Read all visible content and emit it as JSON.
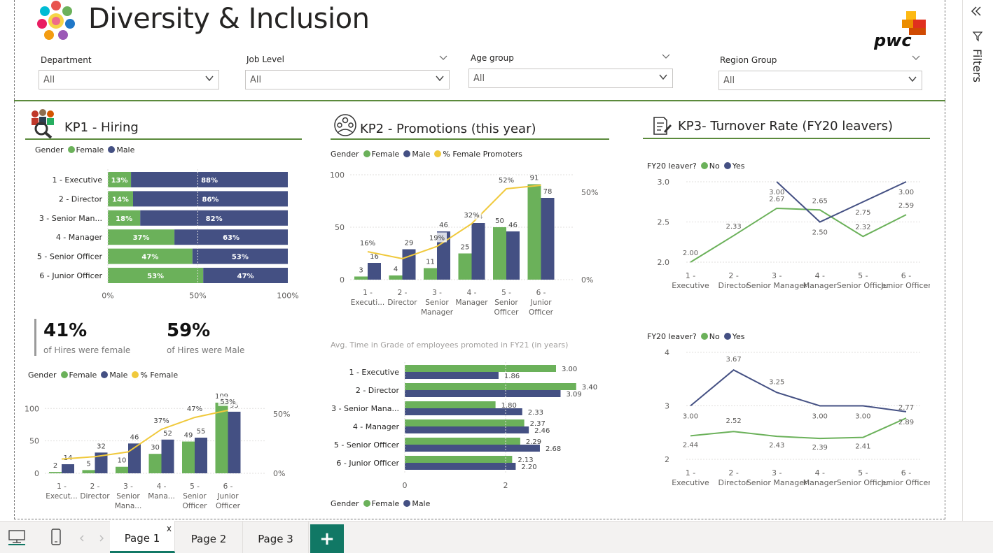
{
  "header": {
    "title": "Diversity & Inclusion",
    "brand": "pwc"
  },
  "colors": {
    "female": "#6bb15a",
    "male": "#445083",
    "promo_line": "#f0c93c",
    "accent_rule": "#5b8a3c",
    "tab_accent": "#117865"
  },
  "filters": [
    {
      "label": "Department",
      "value": "All"
    },
    {
      "label": "Job Level",
      "value": "All"
    },
    {
      "label": "Age group",
      "value": "All"
    },
    {
      "label": "Region Group",
      "value": "All"
    }
  ],
  "right_pane": {
    "label": "Filters"
  },
  "kp1": {
    "title": "KP1 - Hiring",
    "kpi_female_value": "41%",
    "kpi_female_label": "of Hires were female",
    "kpi_male_value": "59%",
    "kpi_male_label": "of Hires were Male"
  },
  "kp2": {
    "title": "KP2 - Promotions (this year)",
    "avg_title": "Avg. Time in Grade of employees promoted in FY21 (in years)"
  },
  "kp3": {
    "title": "KP3- Turnover Rate (FY20 leavers)"
  },
  "legends": {
    "gender": "Gender",
    "female": "Female",
    "male": "Male",
    "pct_female_promoters": "% Female Promoters",
    "pct_female": "% Female",
    "fy20_leaver": "FY20 leaver?",
    "no": "No",
    "yes": "Yes"
  },
  "tabs": [
    {
      "label": "Page 1",
      "active": true
    },
    {
      "label": "Page 2"
    },
    {
      "label": "Page 3"
    }
  ],
  "tab_close": "x",
  "add_tab": "+",
  "chart_data": [
    {
      "id": "hiring_stacked",
      "type": "bar",
      "orientation": "horizontal",
      "stacked": "100%",
      "categories": [
        "1 - Executive",
        "2 - Director",
        "3 - Senior Man...",
        "4 - Manager",
        "5 - Senior Officer",
        "6 - Junior Officer"
      ],
      "series": [
        {
          "name": "Female",
          "values": [
            13,
            14,
            18,
            37,
            47,
            53
          ],
          "labels": [
            "13%",
            "14%",
            "18%",
            "37%",
            "47%",
            "53%"
          ]
        },
        {
          "name": "Male",
          "values": [
            88,
            86,
            82,
            63,
            53,
            47
          ],
          "labels": [
            "88%",
            "86%",
            "82%",
            "63%",
            "53%",
            "47%"
          ]
        }
      ],
      "xticks": [
        "0%",
        "50%",
        "100%"
      ],
      "xlim": [
        0,
        100
      ]
    },
    {
      "id": "hiring_combo",
      "type": "bar",
      "categories": [
        "1 - Execut...",
        "2 - Director",
        "3 - Senior Mana...",
        "4 - Mana...",
        "5 - Senior Officer",
        "6 - Junior Officer"
      ],
      "series": [
        {
          "name": "Female",
          "values": [
            2,
            5,
            10,
            30,
            49,
            109
          ]
        },
        {
          "name": "Male",
          "values": [
            14,
            32,
            46,
            52,
            55,
            95
          ]
        },
        {
          "name": "% Female",
          "type": "line",
          "values": [
            12,
            14,
            18,
            37,
            47,
            53
          ],
          "labels": [
            "",
            "",
            "",
            "37%",
            "47%",
            "53%"
          ]
        }
      ],
      "yticks": [
        "0",
        "50",
        "100"
      ],
      "ylim": [
        0,
        110
      ],
      "y2ticks": [
        "0%",
        "50%"
      ],
      "y2lim": [
        0,
        60
      ]
    },
    {
      "id": "promotions_combo",
      "type": "bar",
      "categories": [
        "1 - Executi...",
        "2 - Director",
        "3 - Senior Manager",
        "4 - Manager",
        "5 - Senior Officer",
        "6 - Junior Officer"
      ],
      "series": [
        {
          "name": "Female",
          "values": [
            3,
            4,
            11,
            25,
            50,
            91
          ]
        },
        {
          "name": "Male",
          "values": [
            16,
            29,
            46,
            54,
            46,
            78
          ]
        },
        {
          "name": "% Female Promoters",
          "type": "line",
          "values": [
            16,
            12,
            19,
            32,
            52,
            54
          ],
          "labels": [
            "16%",
            "",
            "19%",
            "32%",
            "52%",
            ""
          ]
        }
      ],
      "bar_labels": [
        "3",
        "16",
        "4",
        "29",
        "11",
        "46",
        "25",
        "54",
        "50",
        "",
        "91",
        "78"
      ],
      "yticks": [
        "0",
        "50",
        "100"
      ],
      "ylim": [
        0,
        100
      ],
      "y2ticks": [
        "0%",
        "50%"
      ],
      "y2lim": [
        0,
        60
      ]
    },
    {
      "id": "time_in_grade",
      "type": "bar",
      "orientation": "horizontal",
      "categories": [
        "1 - Executive",
        "2 - Director",
        "3 - Senior Mana...",
        "4 - Manager",
        "5 - Senior Officer",
        "6 - Junior Officer"
      ],
      "series": [
        {
          "name": "Female",
          "values": [
            3.0,
            3.4,
            1.8,
            2.37,
            2.29,
            2.13
          ]
        },
        {
          "name": "Male",
          "values": [
            1.86,
            3.09,
            2.33,
            2.46,
            2.68,
            2.2
          ]
        }
      ],
      "xticks": [
        "0",
        "2"
      ],
      "xlim": [
        0,
        3.5
      ]
    },
    {
      "id": "turnover_line_1",
      "type": "line",
      "categories": [
        "1 - Executive",
        "2 - Director",
        "3 - Senior Manager",
        "4 - Manager",
        "5 - Senior Officer",
        "6 - Junior Officer"
      ],
      "series": [
        {
          "name": "No",
          "values": [
            2.0,
            2.33,
            2.67,
            2.65,
            2.32,
            2.59
          ]
        },
        {
          "name": "Yes",
          "values": [
            null,
            null,
            3.0,
            2.5,
            2.75,
            3.0
          ]
        }
      ],
      "yticks": [
        "2.0",
        "2.5",
        "3.0"
      ],
      "ylim": [
        1.95,
        3.1
      ]
    },
    {
      "id": "turnover_line_2",
      "type": "line",
      "categories": [
        "1 - Executive",
        "2 - Director",
        "3 - Senior Manager",
        "4 - Manager",
        "5 - Senior Officer",
        "6 - Junior Officer"
      ],
      "series": [
        {
          "name": "No",
          "values": [
            2.44,
            2.52,
            2.43,
            2.39,
            2.41,
            2.77
          ]
        },
        {
          "name": "Yes",
          "values": [
            3.0,
            3.67,
            3.25,
            3.0,
            3.0,
            2.89
          ]
        }
      ],
      "yticks": [
        "2",
        "3",
        "4"
      ],
      "ylim": [
        2,
        4
      ]
    }
  ]
}
